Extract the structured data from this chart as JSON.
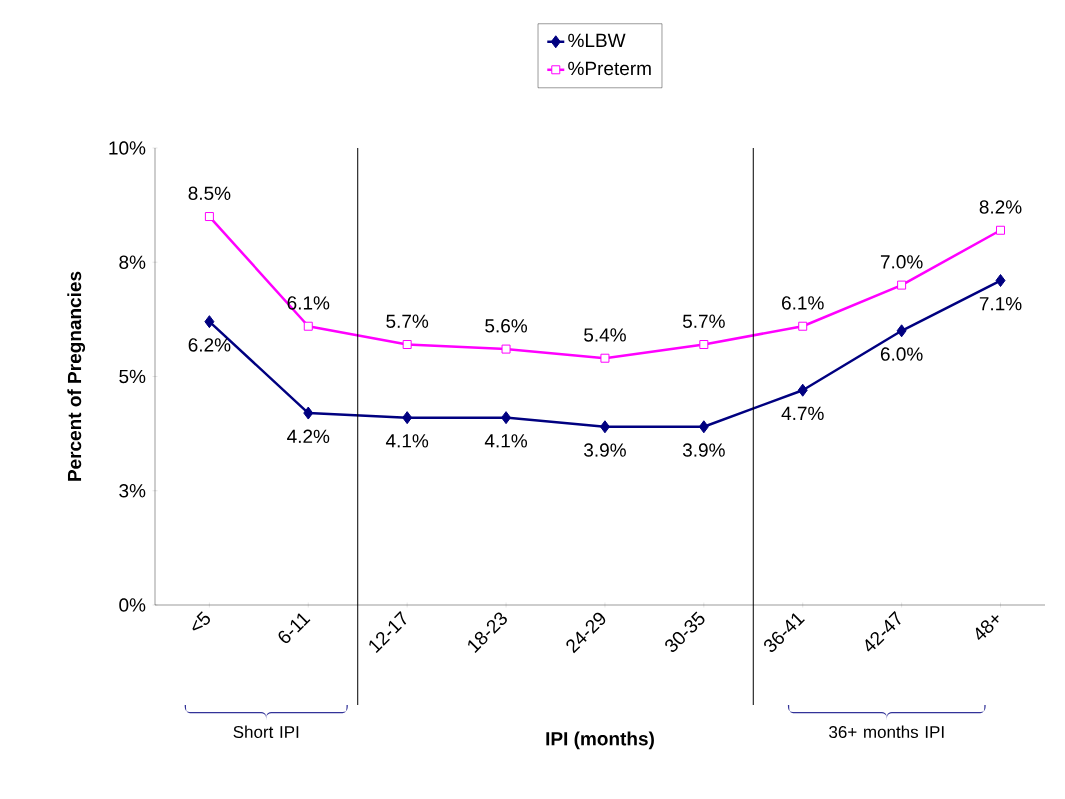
{
  "chart_data": {
    "type": "line",
    "xlabel": "IPI (months)",
    "ylabel": "Percent of Pregnancies",
    "categories": [
      "<5",
      "6-11",
      "12-17",
      "18-23",
      "24-29",
      "30-35",
      "36-41",
      "42-47",
      "48+"
    ],
    "series": [
      {
        "name": "%LBW",
        "color": "#000080",
        "marker": "diamond",
        "values": [
          6.2,
          4.2,
          4.1,
          4.1,
          3.9,
          3.9,
          4.7,
          6.0,
          7.1
        ],
        "value_labels": [
          "6.2%",
          "4.2%",
          "4.1%",
          "4.1%",
          "3.9%",
          "3.9%",
          "4.7%",
          "6.0%",
          "7.1%"
        ]
      },
      {
        "name": "%Preterm",
        "color": "#ff00ff",
        "marker": "square",
        "values": [
          8.5,
          6.1,
          5.7,
          5.6,
          5.4,
          5.7,
          6.1,
          7.0,
          8.2
        ],
        "value_labels": [
          "8.5%",
          "6.1%",
          "5.7%",
          "5.6%",
          "5.4%",
          "5.7%",
          "6.1%",
          "7.0%",
          "8.2%"
        ]
      }
    ],
    "ylim": [
      0,
      10
    ],
    "yticks": [
      {
        "value": 0,
        "label": "0%"
      },
      {
        "value": 2.5,
        "label": "3%"
      },
      {
        "value": 5,
        "label": "5%"
      },
      {
        "value": 7.5,
        "label": "8%"
      },
      {
        "value": 10,
        "label": "10%"
      }
    ],
    "annotations": [
      "Short IPI",
      "36+ months IPI"
    ],
    "grid": false,
    "legend": "top"
  }
}
